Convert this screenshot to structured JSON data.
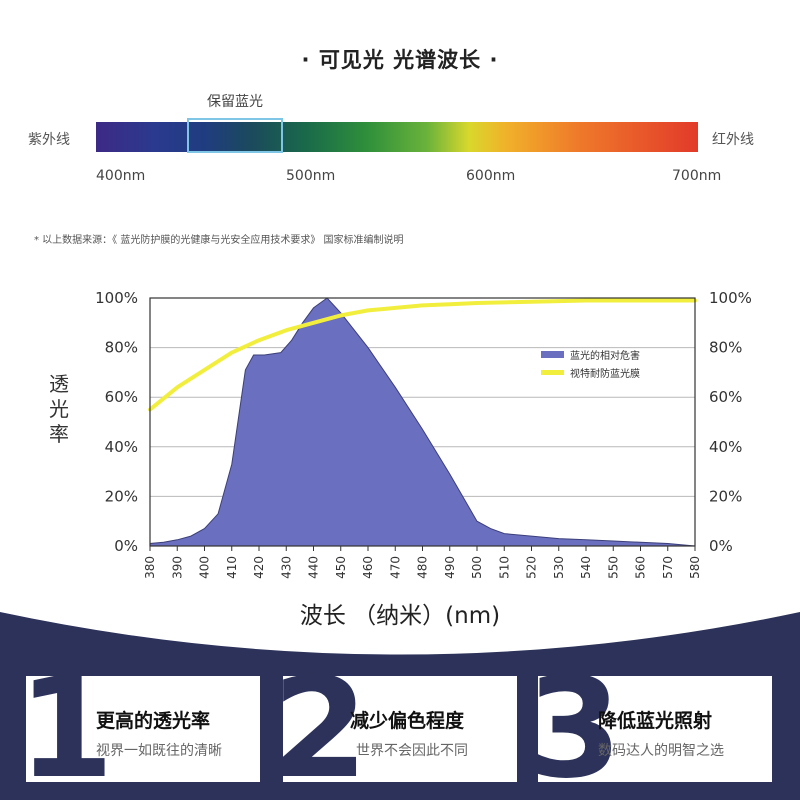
{
  "spectrum": {
    "title": "· 可见光 光谱波长 ·",
    "retain_label": "保留蓝光",
    "uv_label": "紫外线",
    "ir_label": "红外线",
    "wavelength_labels": [
      "400nm",
      "500nm",
      "600nm",
      "700nm"
    ]
  },
  "source_note": "* 以上数据来源：《 蓝光防护膜的光健康与光安全应用技术要求》 国家标准编制说明",
  "chart_data": {
    "type": "area",
    "x": [
      380,
      390,
      400,
      410,
      420,
      430,
      440,
      450,
      460,
      470,
      480,
      490,
      500,
      510,
      520,
      530,
      540,
      550,
      560,
      570,
      580
    ],
    "xlabel": "波长 （纳米）(nm)",
    "ylabel": "透光率",
    "ylim": [
      0,
      100
    ],
    "yticks_left": [
      "100%",
      "80%",
      "60%",
      "40%",
      "20%",
      "0%"
    ],
    "yticks_right": [
      "100%",
      "80%",
      "60%",
      "40%",
      "20%",
      "0%"
    ],
    "legend_position": "right",
    "series": [
      {
        "name": "蓝光的相对危害",
        "color": "#6b6fbf",
        "kind": "area",
        "points": [
          [
            380,
            1
          ],
          [
            385,
            1.5
          ],
          [
            390,
            2.5
          ],
          [
            395,
            4
          ],
          [
            400,
            7
          ],
          [
            405,
            13
          ],
          [
            410,
            33
          ],
          [
            415,
            71
          ],
          [
            418,
            77
          ],
          [
            422,
            77
          ],
          [
            428,
            78
          ],
          [
            432,
            83
          ],
          [
            436,
            90
          ],
          [
            440,
            96
          ],
          [
            445,
            100
          ],
          [
            450,
            94
          ],
          [
            460,
            80
          ],
          [
            470,
            64
          ],
          [
            480,
            47
          ],
          [
            490,
            29
          ],
          [
            500,
            10
          ],
          [
            505,
            7
          ],
          [
            510,
            5
          ],
          [
            520,
            4
          ],
          [
            530,
            3
          ],
          [
            540,
            2.5
          ],
          [
            550,
            2
          ],
          [
            560,
            1.5
          ],
          [
            570,
            1
          ],
          [
            580,
            0
          ]
        ]
      },
      {
        "name": "视特耐防蓝光膜",
        "color": "#f2ee3e",
        "kind": "line",
        "points": [
          [
            380,
            55
          ],
          [
            390,
            64
          ],
          [
            400,
            71
          ],
          [
            410,
            78
          ],
          [
            420,
            83
          ],
          [
            430,
            87
          ],
          [
            440,
            90
          ],
          [
            450,
            93
          ],
          [
            460,
            95
          ],
          [
            470,
            96
          ],
          [
            480,
            97
          ],
          [
            490,
            97.5
          ],
          [
            500,
            98
          ],
          [
            520,
            98.5
          ],
          [
            540,
            99
          ],
          [
            560,
            99
          ],
          [
            580,
            99
          ]
        ]
      }
    ]
  },
  "features": [
    {
      "number": "1",
      "title": "更高的透光率",
      "subtitle": "视界一如既往的清晰"
    },
    {
      "number": "2",
      "title": "减少偏色程度",
      "subtitle": "世界不会因此不同"
    },
    {
      "number": "3",
      "title": "降低蓝光照射",
      "subtitle": "数码达人的明智之选"
    }
  ]
}
